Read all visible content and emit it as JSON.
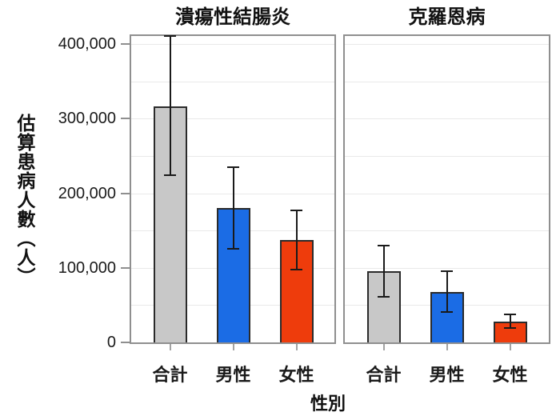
{
  "chart_data": {
    "type": "bar",
    "xlabel": "性別",
    "ylabel": "估算患病人數（人）",
    "y_ticks": [
      0,
      100000,
      200000,
      300000,
      400000
    ],
    "y_tick_labels": [
      "0",
      "100,000",
      "200,000",
      "300,000",
      "400,000"
    ],
    "ylim": [
      0,
      412000
    ],
    "grid_step": 50000,
    "grid_on": true,
    "error_bars": true,
    "categories": [
      "合計",
      "男性",
      "女性"
    ],
    "bar_colors": {
      "合計": "#c8c8c8",
      "男性": "#1b6ce5",
      "女性": "#ee3c0c"
    },
    "panels": [
      {
        "title": "潰瘍性結腸炎",
        "categories": [
          "合計",
          "男性",
          "女性"
        ],
        "values": [
          316000,
          180000,
          137000
        ],
        "error_low": [
          224000,
          126000,
          98000
        ],
        "error_high": [
          411000,
          235000,
          177000
        ]
      },
      {
        "title": "克羅恩病",
        "categories": [
          "合計",
          "男性",
          "女性"
        ],
        "values": [
          95000,
          68000,
          28000
        ],
        "error_low": [
          61000,
          41000,
          19000
        ],
        "error_high": [
          130000,
          95000,
          37000
        ]
      }
    ]
  }
}
